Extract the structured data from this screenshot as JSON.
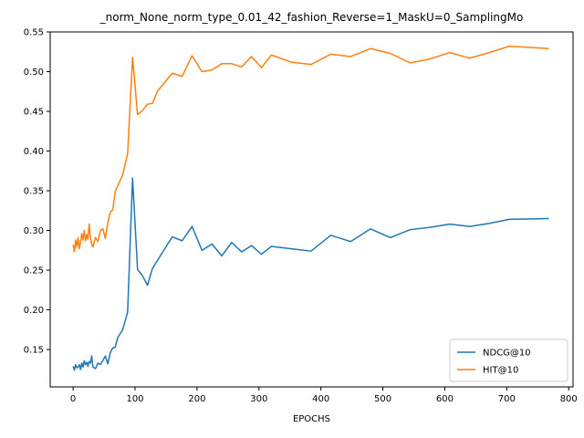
{
  "chart_data": {
    "type": "line",
    "title": "_norm_None_norm_type_0.01_42_fashion_Reverse=1_MaskU=0_SamplingMo",
    "xlabel": "EPOCHS",
    "ylabel": "",
    "xlim": [
      -37,
      807
    ],
    "ylim": [
      0.103,
      0.55
    ],
    "xticks": [
      0,
      100,
      200,
      300,
      400,
      500,
      600,
      700,
      800
    ],
    "yticks": [
      0.15,
      0.2,
      0.25,
      0.3,
      0.35,
      0.4,
      0.45,
      0.5,
      0.55
    ],
    "ytick_labels": [
      "0.15",
      "0.20",
      "0.25",
      "0.30",
      "0.35",
      "0.40",
      "0.45",
      "0.50",
      "0.55"
    ],
    "legend_position": "lower-right",
    "grid": false,
    "series": [
      {
        "name": "NDCG@10",
        "color": "#1f77b4",
        "x": [
          0,
          2,
          4,
          6,
          8,
          10,
          12,
          14,
          16,
          18,
          20,
          22,
          24,
          26,
          28,
          30,
          32,
          36,
          40,
          44,
          48,
          52,
          56,
          60,
          64,
          68,
          72,
          80,
          88,
          96,
          104,
          112,
          120,
          128,
          136,
          160,
          176,
          192,
          208,
          224,
          240,
          256,
          272,
          288,
          304,
          320,
          352,
          384,
          416,
          448,
          480,
          512,
          544,
          576,
          608,
          640,
          672,
          704,
          768
        ],
        "y": [
          0.129,
          0.124,
          0.131,
          0.127,
          0.128,
          0.131,
          0.125,
          0.133,
          0.128,
          0.136,
          0.131,
          0.134,
          0.129,
          0.135,
          0.133,
          0.142,
          0.128,
          0.126,
          0.133,
          0.131,
          0.136,
          0.142,
          0.132,
          0.146,
          0.152,
          0.153,
          0.165,
          0.175,
          0.197,
          0.366,
          0.251,
          0.243,
          0.231,
          0.252,
          0.262,
          0.292,
          0.287,
          0.305,
          0.275,
          0.283,
          0.268,
          0.285,
          0.273,
          0.281,
          0.27,
          0.28,
          0.277,
          0.274,
          0.294,
          0.286,
          0.302,
          0.291,
          0.301,
          0.304,
          0.308,
          0.305,
          0.309,
          0.314,
          0.315
        ]
      },
      {
        "name": "HIT@10",
        "color": "#ff7f0e",
        "x": [
          0,
          2,
          4,
          6,
          8,
          10,
          12,
          14,
          16,
          18,
          20,
          22,
          24,
          26,
          28,
          30,
          32,
          36,
          40,
          44,
          48,
          52,
          56,
          60,
          64,
          68,
          72,
          80,
          88,
          96,
          104,
          112,
          120,
          128,
          136,
          160,
          176,
          192,
          208,
          224,
          240,
          256,
          272,
          288,
          304,
          320,
          352,
          384,
          416,
          448,
          480,
          512,
          544,
          576,
          608,
          640,
          672,
          704,
          768
        ],
        "y": [
          0.282,
          0.273,
          0.288,
          0.279,
          0.291,
          0.277,
          0.285,
          0.296,
          0.288,
          0.3,
          0.287,
          0.295,
          0.289,
          0.308,
          0.291,
          0.283,
          0.279,
          0.291,
          0.286,
          0.3,
          0.302,
          0.29,
          0.31,
          0.323,
          0.326,
          0.349,
          0.356,
          0.37,
          0.397,
          0.518,
          0.446,
          0.451,
          0.459,
          0.46,
          0.475,
          0.498,
          0.494,
          0.52,
          0.5,
          0.502,
          0.51,
          0.51,
          0.506,
          0.519,
          0.505,
          0.521,
          0.512,
          0.509,
          0.522,
          0.519,
          0.529,
          0.523,
          0.511,
          0.516,
          0.524,
          0.517,
          0.524,
          0.532,
          0.529
        ]
      }
    ]
  }
}
